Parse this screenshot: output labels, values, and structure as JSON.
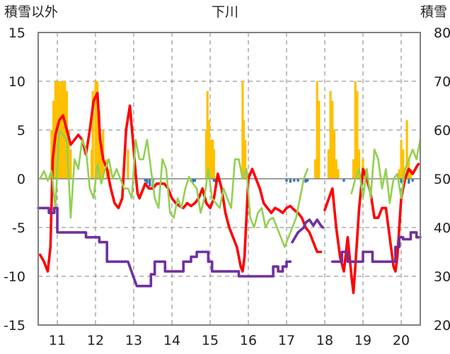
{
  "chart_data": {
    "type": "line",
    "title": "下川",
    "left_axis_label": "積雪以外",
    "right_axis_label": "積雪",
    "left_ylim": [
      -15,
      15
    ],
    "left_ticks": [
      "15",
      "10",
      "5",
      "0",
      "-5",
      "-10",
      "-15"
    ],
    "right_ylim": [
      20,
      80
    ],
    "right_ticks": [
      "80",
      "70",
      "60",
      "50",
      "40",
      "30",
      "20"
    ],
    "xlim": [
      10.5,
      20.5
    ],
    "x_ticks": [
      "11",
      "12",
      "13",
      "14",
      "15",
      "16",
      "17",
      "18",
      "19",
      "20"
    ],
    "colors": {
      "red": "#ff0000",
      "green": "#92d050",
      "purple": "#7030a0",
      "orange": "#ffc000",
      "blue": "#2e75b6",
      "grid": "#808080",
      "frame": "#808080"
    },
    "series": [
      {
        "name": "red",
        "axis": "left",
        "x": [
          10.55,
          10.65,
          10.75,
          10.82,
          10.88,
          10.95,
          11.05,
          11.15,
          11.25,
          11.35,
          11.45,
          11.55,
          11.65,
          11.75,
          11.85,
          11.95,
          12.05,
          12.12,
          12.2,
          12.3,
          12.4,
          12.5,
          12.6,
          12.7,
          12.8,
          12.9,
          13.0,
          13.05,
          13.1,
          13.15,
          13.2,
          13.3,
          13.4,
          13.5,
          13.6,
          13.7,
          13.8,
          13.9,
          14.0,
          14.1,
          14.2,
          14.3,
          14.4,
          14.5,
          14.6,
          14.7,
          14.8,
          14.9,
          15.0,
          15.1,
          15.2,
          15.3,
          15.4,
          15.5,
          15.6,
          15.7,
          15.8,
          15.85,
          15.9,
          15.95,
          16.0,
          16.1,
          16.2,
          16.3,
          16.4,
          16.5,
          16.6,
          16.7,
          16.8,
          16.9,
          17.0,
          17.1,
          17.2,
          17.3,
          17.4,
          17.5,
          17.6,
          17.7,
          17.8,
          17.9
        ],
        "y": [
          -7.8,
          -8.5,
          -9.5,
          -7,
          2,
          4.5,
          6,
          6.5,
          5,
          3.5,
          4,
          4.5,
          4,
          2.5,
          5,
          8,
          8.8,
          4,
          2,
          1,
          -1,
          -2.5,
          -3,
          -2,
          5,
          7.5,
          3,
          0.5,
          -1.5,
          -2,
          -1.5,
          -0.5,
          -1,
          -1,
          -0.5,
          -0.5,
          -0.5,
          -1,
          -2,
          -2.5,
          -2.8,
          -3,
          -2.5,
          -2.8,
          -2.5,
          -2,
          -1,
          -2.5,
          -3,
          -2,
          0.5,
          -1,
          -3.5,
          -5,
          -6,
          -7,
          -9,
          -9.5,
          -8,
          -4,
          0,
          1,
          0,
          -1,
          -2.5,
          -3,
          -3.5,
          -3,
          -3.2,
          -3.5,
          -3,
          -2.8,
          -3.2,
          -3.5,
          -4,
          -5,
          -5.5,
          -6.5,
          -7.5,
          -7.5
        ]
      },
      {
        "name": "red-2",
        "axis": "left",
        "x": [
          18.0,
          18.2,
          18.3,
          18.4,
          18.5,
          18.6,
          18.7,
          18.75,
          18.8,
          18.9,
          19.0,
          19.1,
          19.2,
          19.3,
          19.4,
          19.5,
          19.6,
          19.7,
          19.8,
          19.85,
          19.9,
          20.0,
          20.1,
          20.2,
          20.3,
          20.4,
          20.45
        ],
        "y": [
          -3.2,
          -1,
          -5,
          -8,
          -9.5,
          -6,
          -10,
          -11.7,
          -9,
          -3,
          1,
          0,
          -1.5,
          -4,
          -4,
          -3,
          -3,
          -6,
          -9,
          -9.5,
          -8,
          -2,
          0,
          1,
          0.5,
          1.2,
          1.5
        ]
      },
      {
        "name": "green",
        "axis": "left",
        "x": [
          10.55,
          10.65,
          10.75,
          10.85,
          10.95,
          11.05,
          11.15,
          11.25,
          11.35,
          11.45,
          11.55,
          11.65,
          11.75,
          11.85,
          11.95,
          12.05,
          12.15,
          12.25,
          12.35,
          12.45,
          12.55,
          12.65,
          12.75,
          12.85,
          12.95,
          13.05,
          13.15,
          13.25,
          13.35,
          13.45,
          13.55,
          13.65,
          13.75,
          13.85,
          13.95,
          14.05,
          14.15,
          14.25,
          14.35,
          14.45,
          14.55,
          14.65,
          14.75,
          14.85,
          14.95,
          15.05,
          15.15,
          15.25,
          15.35,
          15.45,
          15.55,
          15.65,
          15.75,
          15.85,
          15.95,
          16.05,
          16.15,
          16.25,
          16.35,
          16.45,
          16.55,
          16.65,
          16.75,
          16.85,
          16.95,
          17.05,
          17.15,
          17.25,
          17.35,
          17.45,
          17.55
        ],
        "y": [
          0,
          0.8,
          -0.2,
          0.8,
          -3,
          5,
          4.5,
          4,
          -4,
          2,
          1,
          4,
          3,
          -1,
          -2,
          1.5,
          -0.5,
          1,
          2,
          0,
          1,
          0,
          -1,
          -1,
          -2,
          4,
          2,
          2,
          4,
          1,
          -2,
          -3,
          2,
          1,
          -3.5,
          -4,
          -2,
          -3,
          -1,
          0.2,
          -0.5,
          -1,
          -3.5,
          -2,
          1,
          -2,
          -2.5,
          -3,
          -1,
          -2,
          -3,
          2,
          2,
          0,
          1,
          -4,
          -5,
          -3.5,
          -3,
          -5,
          -4.2,
          -4,
          -5,
          -6,
          -7,
          -6,
          -5,
          -4,
          -2,
          0,
          1
        ]
      },
      {
        "name": "green-2",
        "axis": "left",
        "x": [
          18.7,
          18.8,
          18.9,
          19.0,
          19.1,
          19.2,
          19.3,
          19.4,
          19.5,
          19.6,
          19.7,
          19.8,
          19.9,
          20.0,
          20.1,
          20.2,
          20.3,
          20.4,
          20.5
        ],
        "y": [
          -1.5,
          0,
          1,
          -2,
          1,
          -2,
          3,
          2,
          -1,
          1,
          -2.5,
          0,
          0.5,
          -2,
          1,
          2,
          3,
          2,
          4
        ]
      },
      {
        "name": "purple",
        "axis": "left",
        "x": [
          10.5,
          10.78,
          10.78,
          10.92,
          10.92,
          11.0,
          11.0,
          11.45,
          11.45,
          11.75,
          11.75,
          11.95,
          11.95,
          12.1,
          12.1,
          12.3,
          12.3,
          12.55,
          12.55,
          12.85,
          12.85,
          13.08,
          13.08,
          13.45,
          13.45,
          13.55,
          13.55,
          13.82,
          13.82,
          14.3,
          14.3,
          14.5,
          14.5,
          14.65,
          14.65,
          14.95,
          14.95,
          15.05,
          15.05,
          15.75,
          15.75,
          16.0,
          16.0,
          16.65,
          16.65,
          16.78,
          16.78,
          16.9,
          16.9,
          17.0,
          17.0,
          17.1
        ],
        "y": [
          -3,
          -3,
          -3.5,
          -3.5,
          -3,
          -3,
          -5.5,
          -5.5,
          -5.5,
          -5.5,
          -6,
          -6,
          -6,
          -6,
          -6.5,
          -6.5,
          -8.5,
          -8.5,
          -8.5,
          -8.5,
          -8.5,
          -11,
          -11,
          -11,
          -9.8,
          -9.8,
          -8.5,
          -8.5,
          -9.5,
          -9.5,
          -8.5,
          -8.5,
          -8,
          -8,
          -7.5,
          -7.5,
          -8.5,
          -8.5,
          -9.5,
          -9.5,
          -10,
          -10,
          -10,
          -10,
          -9,
          -9,
          -9.5,
          -9.5,
          -9,
          -9,
          -8.5,
          -8.5
        ]
      },
      {
        "name": "purple-2",
        "axis": "left",
        "x": [
          17.15,
          17.3,
          17.45,
          17.5,
          17.6,
          17.7,
          17.8,
          17.9,
          17.95
        ],
        "y": [
          -6.5,
          -5.5,
          -5,
          -4.5,
          -4.2,
          -4.8,
          -4.2,
          -4.8,
          -5
        ]
      },
      {
        "name": "purple-3",
        "axis": "left",
        "x": [
          18.2,
          18.45,
          18.45,
          18.6,
          18.6,
          19.0,
          19.0,
          19.25,
          19.25,
          19.4,
          19.4,
          19.85,
          19.85,
          19.95,
          19.95,
          20.05,
          20.05,
          20.25,
          20.25,
          20.4,
          20.4,
          20.5
        ],
        "y": [
          -8.5,
          -8.5,
          -7.5,
          -7.5,
          -8.5,
          -8.5,
          -7.5,
          -7.5,
          -8.5,
          -8.5,
          -8.5,
          -8.5,
          -7,
          -7,
          -6,
          -6,
          -6.2,
          -6.2,
          -5.5,
          -5.5,
          -6,
          -6
        ]
      }
    ],
    "bars": [
      {
        "name": "orange",
        "axis": "left",
        "x": [
          10.85,
          10.9,
          10.95,
          11.0,
          11.05,
          11.1,
          11.15,
          11.2,
          11.25,
          11.3,
          11.35,
          11.9,
          11.93,
          12.0,
          12.05,
          12.1,
          12.15,
          12.2,
          12.3,
          12.35,
          12.85,
          13.05,
          14.9,
          14.93,
          14.97,
          15.02,
          15.07,
          15.1,
          15.85,
          15.88,
          15.92,
          17.75,
          17.8,
          17.85,
          18.1,
          18.15,
          18.2,
          18.25,
          18.3,
          18.35,
          18.75,
          18.8,
          18.85,
          18.9,
          19.0,
          19.05,
          19.95,
          20.0,
          20.05,
          20.15,
          20.2,
          20.25
        ],
        "y": [
          5,
          8,
          10,
          10,
          10,
          10,
          10,
          10,
          9,
          5,
          3,
          3,
          9,
          10,
          10,
          7,
          3,
          5,
          2,
          1,
          3,
          1,
          5,
          9,
          6,
          4,
          4,
          3,
          10,
          6,
          4,
          2,
          10,
          8,
          3,
          9,
          8,
          5,
          2,
          1,
          2,
          10,
          9,
          3,
          2,
          1,
          1,
          4,
          3,
          6,
          2,
          1
        ]
      },
      {
        "name": "blue",
        "axis": "left",
        "x": [
          13.3,
          13.35,
          13.42,
          13.5,
          14.5,
          14.55,
          14.6,
          15.1,
          15.15,
          15.2,
          17.0,
          17.1,
          17.2,
          17.3,
          17.5,
          17.55,
          18.5,
          20.0,
          20.1,
          20.2,
          20.3
        ],
        "y": [
          -0.3,
          -0.5,
          -0.8,
          -1,
          -0.3,
          -0.4,
          -0.3,
          -0.3,
          -0.4,
          -0.3,
          -0.3,
          -0.4,
          -0.3,
          -0.3,
          -0.4,
          -0.3,
          -0.3,
          -0.4,
          -0.3,
          -0.5,
          -0.3
        ]
      }
    ]
  }
}
